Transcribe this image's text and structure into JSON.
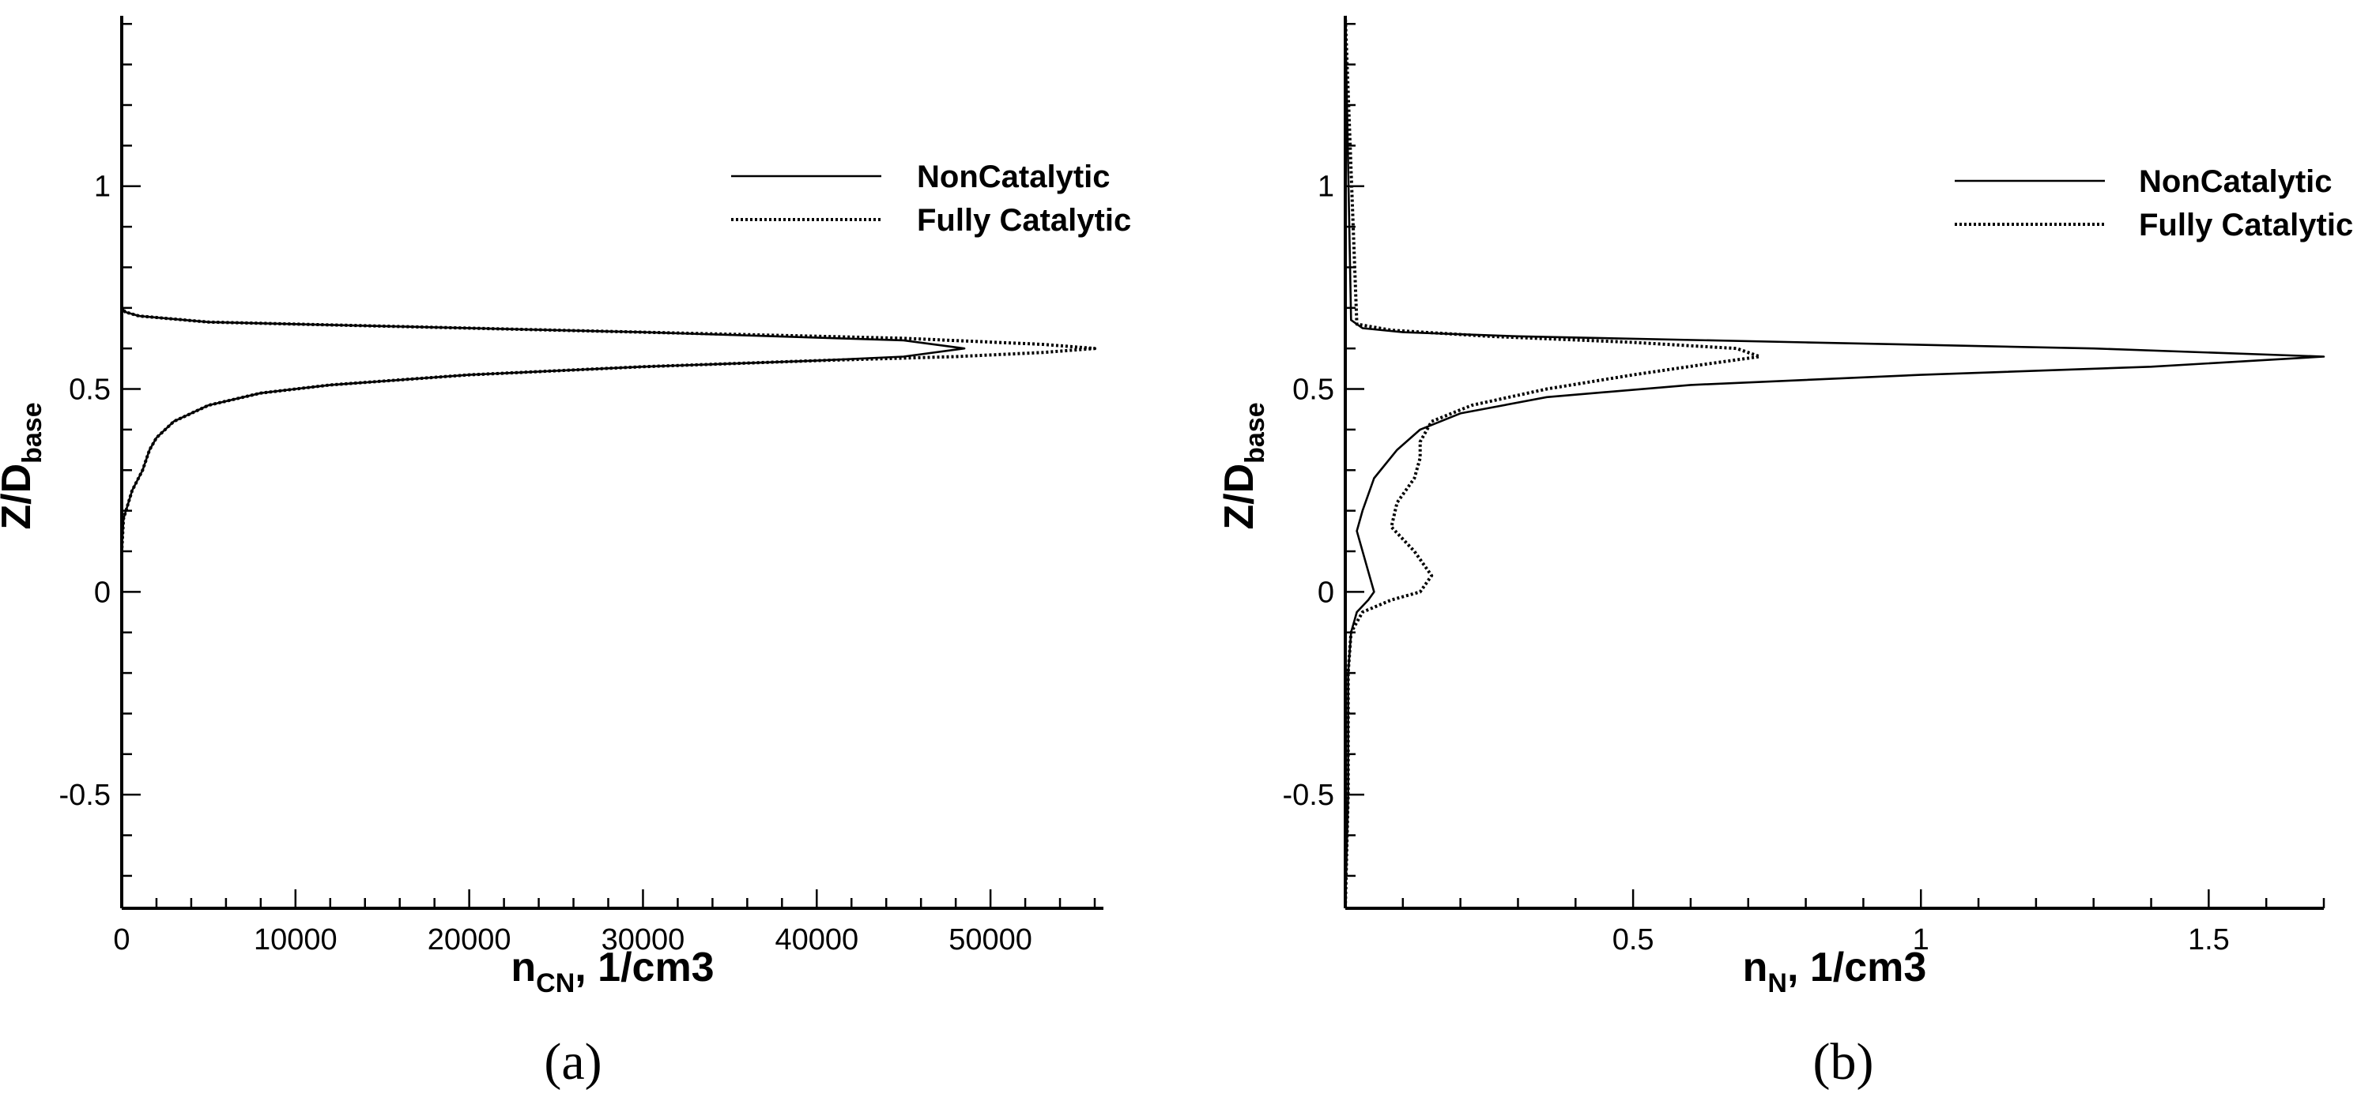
{
  "chart_data": [
    {
      "panel_label": "(a)",
      "type": "line",
      "xlabel_main": "n",
      "xlabel_sub": "CN",
      "xlabel_rest": ", 1/cm3",
      "ylabel_main": "Z/D",
      "ylabel_sub": "base",
      "xlim": [
        0,
        56500
      ],
      "ylim": [
        -0.78,
        1.42
      ],
      "x_ticks": [
        0,
        10000,
        20000,
        30000,
        40000,
        50000
      ],
      "x_tick_labels": [
        "0",
        "10000",
        "20000",
        "30000",
        "40000",
        "50000"
      ],
      "y_ticks": [
        -0.5,
        0,
        0.5,
        1
      ],
      "y_tick_labels": [
        "-0.5",
        "0",
        "0.5",
        "1"
      ],
      "legend_position": "top-right",
      "series": [
        {
          "name": "NonCatalytic",
          "style": "solid",
          "x": [
            0,
            0,
            0,
            0,
            100,
            600,
            1200,
            1600,
            2000,
            3000,
            5000,
            8000,
            12000,
            20000,
            30000,
            40000,
            45000,
            48500,
            45000,
            30000,
            15000,
            5000,
            1000,
            200,
            0
          ],
          "y": [
            -0.78,
            -0.1,
            0,
            0.1,
            0.18,
            0.25,
            0.3,
            0.35,
            0.38,
            0.42,
            0.46,
            0.49,
            0.51,
            0.535,
            0.555,
            0.57,
            0.58,
            0.6,
            0.62,
            0.64,
            0.655,
            0.665,
            0.68,
            0.69,
            0.7
          ]
        },
        {
          "name": "Fully Catalytic",
          "style": "dotted",
          "x": [
            0,
            0,
            0,
            0,
            100,
            600,
            1200,
            1600,
            2000,
            3000,
            5000,
            8000,
            12000,
            20000,
            30000,
            40000,
            48000,
            53000,
            56000,
            53000,
            45000,
            30000,
            15000,
            5000,
            1000,
            200,
            0
          ],
          "y": [
            -0.78,
            -0.1,
            0,
            0.1,
            0.18,
            0.25,
            0.3,
            0.35,
            0.38,
            0.42,
            0.46,
            0.49,
            0.51,
            0.535,
            0.555,
            0.57,
            0.58,
            0.59,
            0.6,
            0.61,
            0.625,
            0.64,
            0.655,
            0.665,
            0.68,
            0.69,
            0.7
          ]
        }
      ]
    },
    {
      "panel_label": "(b)",
      "type": "line",
      "xlabel_main": "n",
      "xlabel_sub": "N",
      "xlabel_rest": ", 1/cm3",
      "ylabel_main": "Z/D",
      "ylabel_sub": "base",
      "xlim": [
        0,
        1.7
      ],
      "ylim": [
        -0.78,
        1.42
      ],
      "x_ticks": [
        0.5,
        1,
        1.5
      ],
      "x_tick_labels": [
        "0.5",
        "1",
        "1.5"
      ],
      "y_ticks": [
        -0.5,
        0,
        0.5,
        1
      ],
      "y_tick_labels": [
        "-0.5",
        "0",
        "0.5",
        "1"
      ],
      "legend_position": "top-right",
      "series": [
        {
          "name": "NonCatalytic",
          "style": "solid",
          "x": [
            0,
            0.005,
            0.005,
            0.01,
            0.02,
            0.04,
            0.05,
            0.04,
            0.02,
            0.03,
            0.05,
            0.09,
            0.13,
            0.2,
            0.35,
            0.6,
            1.0,
            1.4,
            1.7,
            1.3,
            0.8,
            0.3,
            0.1,
            0.03,
            0.01,
            0
          ],
          "y": [
            -0.78,
            -0.5,
            -0.2,
            -0.1,
            -0.05,
            -0.02,
            0,
            0.05,
            0.15,
            0.2,
            0.28,
            0.35,
            0.4,
            0.44,
            0.48,
            0.51,
            0.535,
            0.555,
            0.58,
            0.6,
            0.615,
            0.63,
            0.64,
            0.65,
            0.67,
            1.42
          ]
        },
        {
          "name": "Fully Catalytic",
          "style": "dotted",
          "x": [
            0,
            0.005,
            0.005,
            0.01,
            0.03,
            0.08,
            0.13,
            0.15,
            0.12,
            0.08,
            0.09,
            0.12,
            0.13,
            0.13,
            0.15,
            0.22,
            0.35,
            0.5,
            0.62,
            0.72,
            0.68,
            0.5,
            0.25,
            0.08,
            0.02,
            0
          ],
          "y": [
            -0.78,
            -0.5,
            -0.2,
            -0.1,
            -0.05,
            -0.02,
            0,
            0.04,
            0.1,
            0.16,
            0.22,
            0.28,
            0.33,
            0.37,
            0.42,
            0.46,
            0.5,
            0.535,
            0.56,
            0.58,
            0.6,
            0.615,
            0.63,
            0.645,
            0.66,
            1.42
          ]
        }
      ]
    }
  ]
}
